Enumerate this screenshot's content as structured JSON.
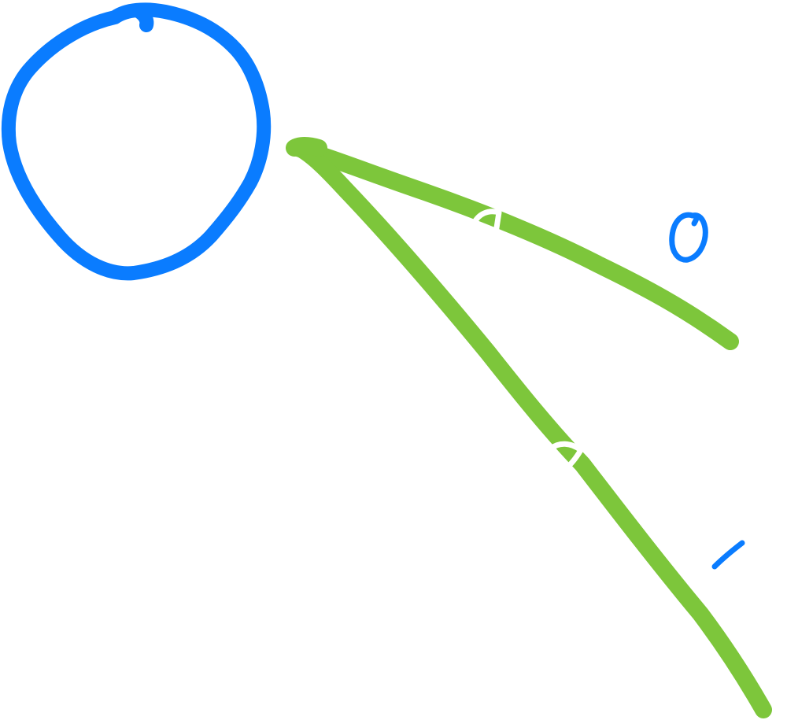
{
  "diagram": {
    "labels": {
      "upper_edge": "0",
      "lower_edge": "1"
    }
  },
  "colors": {
    "node": "#0a7cff",
    "edge": "#7dc63b",
    "label": "#0a7cff",
    "background": "#ffffff",
    "edge_mark": "#ffffff"
  }
}
